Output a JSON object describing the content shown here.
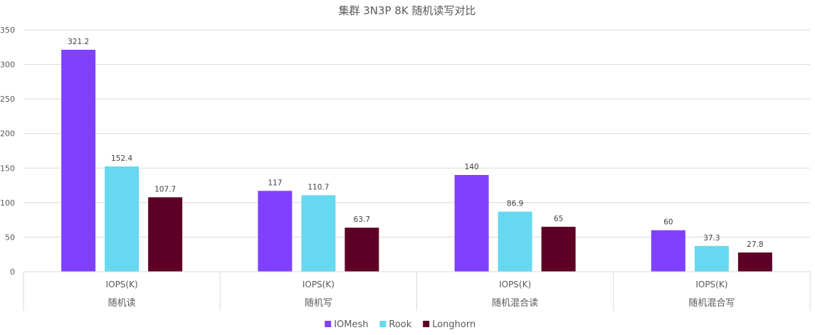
{
  "chart_data": {
    "type": "bar",
    "title": "集群 3N3P 8K 随机读写对比",
    "metric_label": "IOPS(K)",
    "categories": [
      "随机读",
      "随机写",
      "随机混合读",
      "随机混合写"
    ],
    "series": [
      {
        "name": "IOMesh",
        "color": "#8040FF",
        "values": [
          321.2,
          117,
          140,
          60
        ],
        "labels": [
          "321.2",
          "117",
          "140",
          "60"
        ]
      },
      {
        "name": "Rook",
        "color": "#66D9F0",
        "values": [
          152.4,
          110.7,
          86.9,
          37.3
        ],
        "labels": [
          "152.4",
          "110.7",
          "86.9",
          "37.3"
        ]
      },
      {
        "name": "Longhorn",
        "color": "#5E0026",
        "values": [
          107.7,
          63.7,
          65,
          27.8
        ],
        "labels": [
          "107.7",
          "63.7",
          "65",
          "27.8"
        ]
      }
    ],
    "ylim": [
      0,
      350
    ],
    "yticks": [
      0,
      50,
      100,
      150,
      200,
      250,
      300,
      350
    ],
    "grid": true,
    "legend": "bottom"
  }
}
